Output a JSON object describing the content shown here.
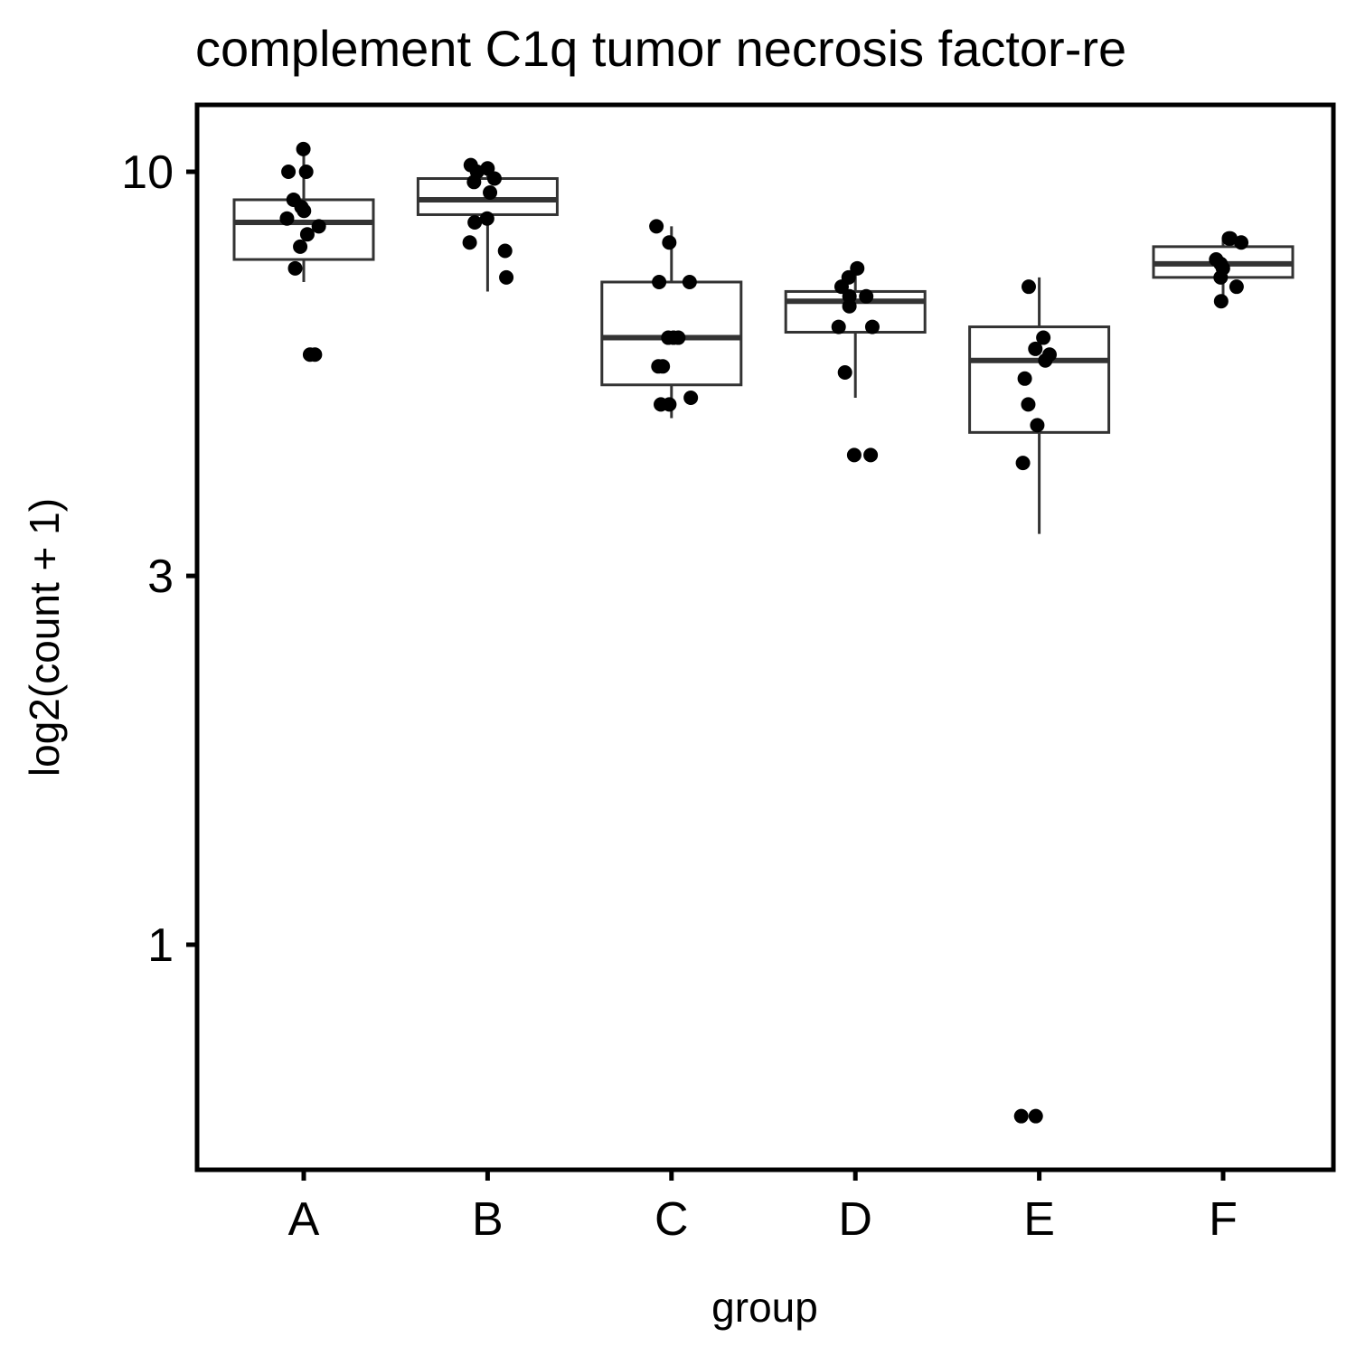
{
  "chart_data": {
    "type": "box",
    "title": "complement C1q tumor necrosis factor-re",
    "xlabel": "group",
    "ylabel": "log2(count + 1)",
    "y_scale": "log10",
    "y_ticks": [
      1,
      3,
      10
    ],
    "ylim": [
      0.55,
      11.5
    ],
    "grid": false,
    "legend": "none",
    "categories": [
      "A",
      "B",
      "C",
      "D",
      "E",
      "F"
    ],
    "boxes": [
      {
        "group": "A",
        "q1": 7.7,
        "median": 8.6,
        "q3": 9.2,
        "whisker_low": 7.2,
        "whisker_high": 10.6
      },
      {
        "group": "B",
        "q1": 8.8,
        "median": 9.2,
        "q3": 9.8,
        "whisker_low": 7.0,
        "whisker_high": 10.0
      },
      {
        "group": "C",
        "q1": 5.3,
        "median": 6.1,
        "q3": 7.2,
        "whisker_low": 4.8,
        "whisker_high": 8.5
      },
      {
        "group": "D",
        "q1": 6.2,
        "median": 6.8,
        "q3": 7.0,
        "whisker_low": 5.1,
        "whisker_high": 7.6
      },
      {
        "group": "E",
        "q1": 4.6,
        "median": 5.7,
        "q3": 6.3,
        "whisker_low": 3.4,
        "whisker_high": 7.3
      },
      {
        "group": "F",
        "q1": 7.3,
        "median": 7.6,
        "q3": 8.0,
        "whisker_low": 6.9,
        "whisker_high": 8.2
      }
    ],
    "points": [
      {
        "group": "A",
        "values": [
          10.7,
          10.0,
          10.0,
          9.2,
          9.0,
          8.9,
          8.7,
          8.5,
          8.3,
          8.0,
          7.5,
          5.8,
          5.8
        ]
      },
      {
        "group": "B",
        "values": [
          10.2,
          10.1,
          10.0,
          9.8,
          9.7,
          9.4,
          8.7,
          8.6,
          8.1,
          7.9,
          7.3
        ]
      },
      {
        "group": "C",
        "values": [
          8.5,
          8.1,
          7.2,
          7.2,
          6.1,
          6.1,
          6.1,
          5.6,
          5.6,
          5.1,
          5.0,
          5.0
        ]
      },
      {
        "group": "D",
        "values": [
          7.5,
          7.3,
          7.1,
          6.9,
          6.9,
          6.7,
          6.3,
          6.3,
          5.5,
          4.3,
          4.3
        ]
      },
      {
        "group": "E",
        "values": [
          7.1,
          6.1,
          5.9,
          5.8,
          5.7,
          5.4,
          5.0,
          4.7,
          4.2,
          0.6,
          0.6
        ]
      },
      {
        "group": "F",
        "values": [
          8.2,
          8.2,
          8.1,
          7.7,
          7.6,
          7.5,
          7.3,
          7.1,
          6.8
        ]
      }
    ]
  }
}
